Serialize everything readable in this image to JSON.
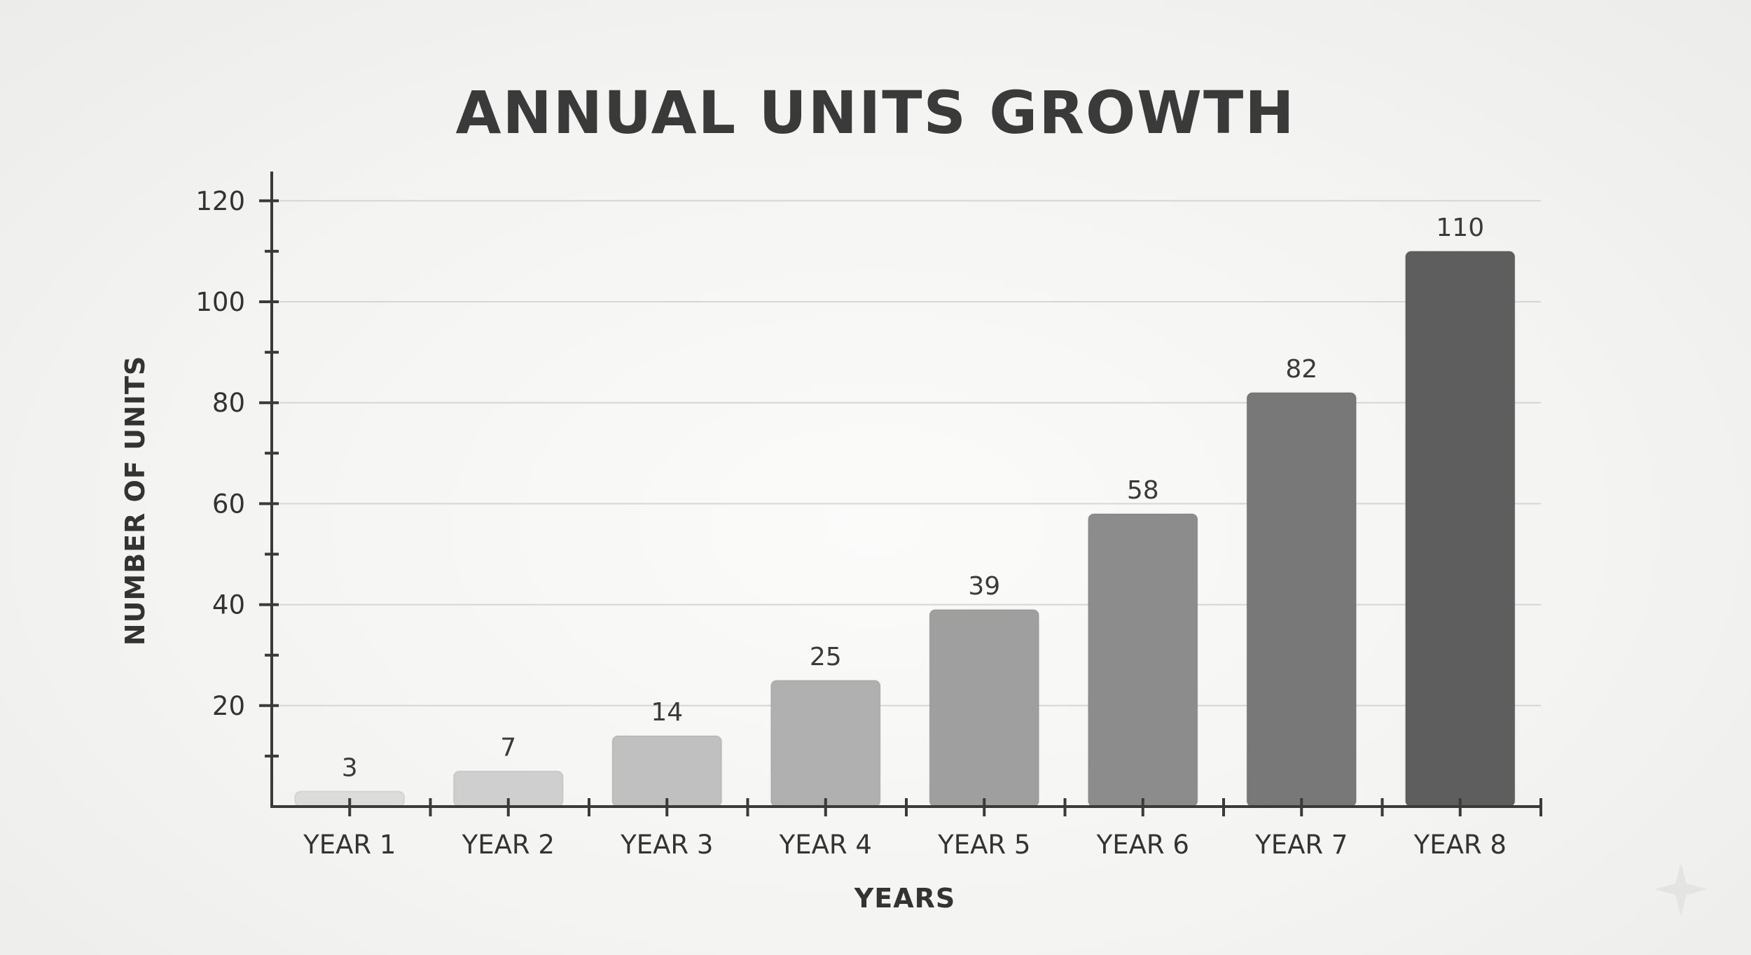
{
  "chart_data": {
    "type": "bar",
    "title": "ANNUAL UNITS GROWTH",
    "xlabel": "YEARS",
    "ylabel": "NUMBER OF UNITS",
    "categories": [
      "YEAR 1",
      "YEAR 2",
      "YEAR 3",
      "YEAR 4",
      "YEAR 5",
      "YEAR 6",
      "YEAR 7",
      "YEAR 8"
    ],
    "values": [
      3,
      7,
      14,
      25,
      39,
      58,
      82,
      110
    ],
    "data_labels": [
      "3",
      "7",
      "14",
      "25",
      "39",
      "58",
      "82",
      "110"
    ],
    "bar_colors": [
      "#dcdcdc",
      "#cfcfcf",
      "#c0c0c0",
      "#b0b0b0",
      "#9f9f9f",
      "#8c8c8c",
      "#787878",
      "#5e5e5e"
    ],
    "ylim": [
      0,
      125
    ],
    "yticks": [
      20,
      40,
      60,
      80,
      100,
      120
    ],
    "ytick_labels": [
      "20",
      "40",
      "60",
      "80",
      "100",
      "120"
    ],
    "minor_yticks": [
      10,
      30,
      50,
      70,
      90,
      110
    ],
    "grid": true,
    "legend": "none"
  }
}
